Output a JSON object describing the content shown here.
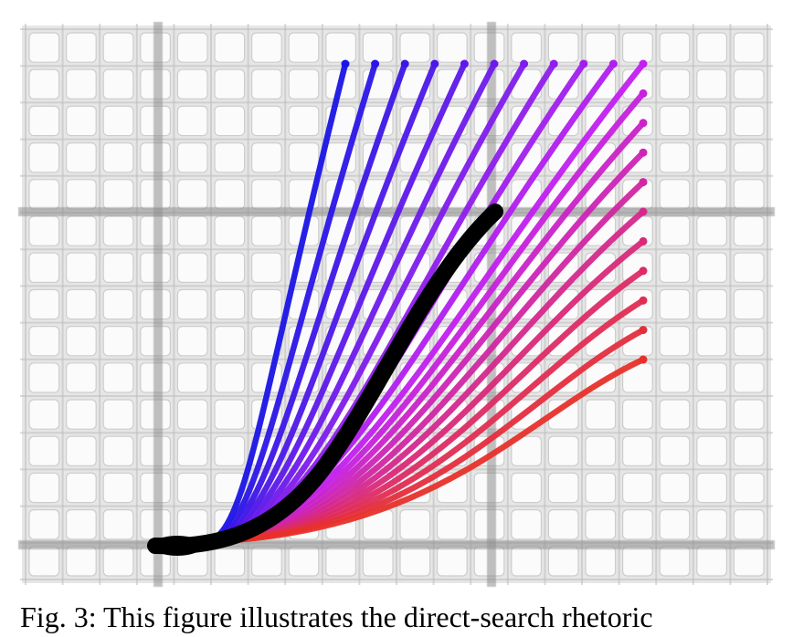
{
  "figure": {
    "caption_visible": "Fig. 3: This figure illustrates the direct-search rhetoric",
    "colors": {
      "background": "#ffffff",
      "tile_fill": "#fbfbfb",
      "tile_border": "#cdcdcd",
      "minor_grid": "#bdbdbd",
      "major_grid": "#8f8f8f",
      "highlight_curve": "#000000",
      "gradient_start": "#1a14e6",
      "gradient_mid": "#c21ff0",
      "gradient_end": "#e8302a"
    },
    "curve_family": {
      "start_point": "shared origin at lower-left",
      "columns": 10,
      "rows": 10,
      "highlight": "thick black reference curve"
    }
  }
}
